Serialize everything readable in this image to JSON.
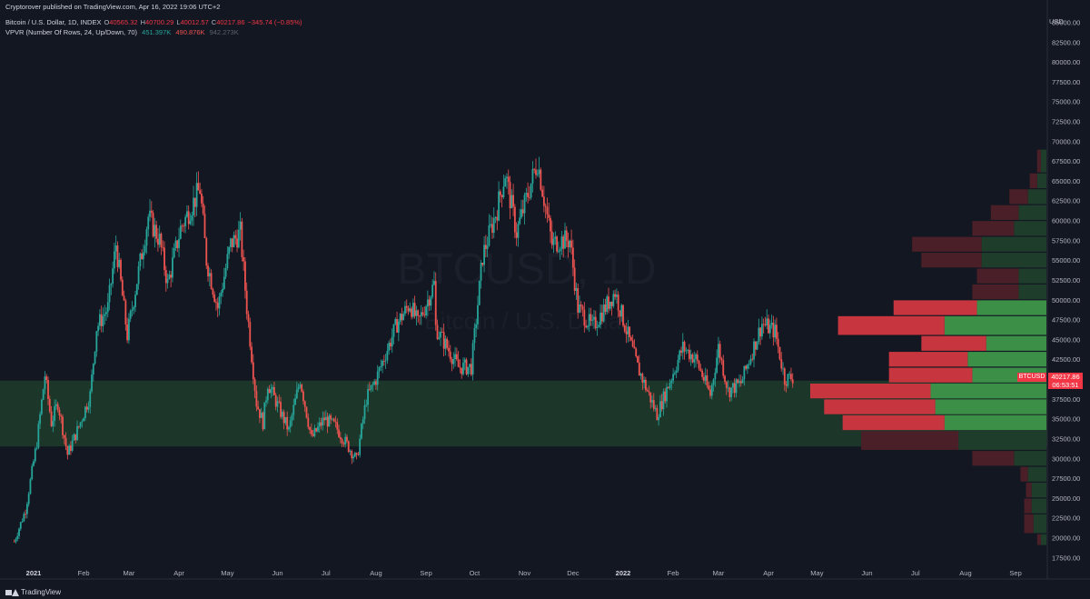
{
  "publisher": "Cryptorover published on TradingView.com, Apr 16, 2022 19:06 UTC+2",
  "symbol_line": "Bitcoin / U.S. Dollar, 1D, INDEX",
  "ohlc": {
    "o_label": "O",
    "o": "40565.32",
    "h_label": "H",
    "h": "40700.29",
    "l_label": "L",
    "l": "40012.57",
    "c_label": "C",
    "c": "40217.86",
    "change": "−345.74 (−0.85%)"
  },
  "vpvr": {
    "label": "VPVR (Number Of Rows, 24, Up/Down, 70)",
    "up": "451.397K",
    "down": "490.876K",
    "total": "942.273K"
  },
  "watermark": {
    "symbol": "BTCUSD, 1D",
    "name": "Bitcoin / U.S. Dollar"
  },
  "axis_unit": "USD",
  "current_price": {
    "symbol": "BTCUSD",
    "price": "40217.86",
    "countdown": "06:53:51"
  },
  "brand": "TradingView",
  "colors": {
    "background": "#131722",
    "up": "#26a69a",
    "down": "#ef5350",
    "zone": "#1f3a2b",
    "vp_up_va": "#3b8f47",
    "vp_down_va": "#c7353f",
    "vp_up": "#1e3d2a",
    "vp_down": "#4a1f27",
    "price_tag": "#f23645"
  },
  "chart_data": {
    "type": "candlestick_with_volume_profile",
    "x_ticks": [
      "2021",
      "Feb",
      "Mar",
      "Apr",
      "May",
      "Jun",
      "Jul",
      "Aug",
      "Sep",
      "Oct",
      "Nov",
      "Dec",
      "2022",
      "Feb",
      "Mar",
      "Apr",
      "May",
      "Jun",
      "Jul",
      "Aug",
      "Sep"
    ],
    "y_ticks": [
      85000,
      82500,
      80000,
      77500,
      75000,
      72500,
      70000,
      67500,
      65000,
      62500,
      60000,
      57500,
      55000,
      52500,
      50000,
      47500,
      45000,
      42500,
      40000,
      37500,
      35000,
      32500,
      30000,
      27500,
      25000,
      22500,
      20000,
      17500
    ],
    "y_tick_labels": [
      "85000.00",
      "82500.00",
      "80000.00",
      "77500.00",
      "75000.00",
      "72500.00",
      "70000.00",
      "67500.00",
      "65000.00",
      "62500.00",
      "60000.00",
      "57500.00",
      "55000.00",
      "52500.00",
      "50000.00",
      "47500.00",
      "45000.00",
      "42500.00",
      "40000.00",
      "37500.00",
      "35000.00",
      "32500.00",
      "30000.00",
      "27500.00",
      "25000.00",
      "22500.00",
      "20000.00",
      "17500.00"
    ],
    "ylim": [
      15700,
      86200
    ],
    "price_path": [
      {
        "x": "2020-12-20",
        "y": 19500
      },
      {
        "x": "2020-12-27",
        "y": 23500
      },
      {
        "x": "2021-01-03",
        "y": 32000
      },
      {
        "x": "2021-01-08",
        "y": 40500
      },
      {
        "x": "2021-01-12",
        "y": 34500
      },
      {
        "x": "2021-01-16",
        "y": 37000
      },
      {
        "x": "2021-01-22",
        "y": 30500
      },
      {
        "x": "2021-01-29",
        "y": 34000
      },
      {
        "x": "2021-02-05",
        "y": 38000
      },
      {
        "x": "2021-02-09",
        "y": 46500
      },
      {
        "x": "2021-02-16",
        "y": 49000
      },
      {
        "x": "2021-02-21",
        "y": 57000
      },
      {
        "x": "2021-02-28",
        "y": 45500
      },
      {
        "x": "2021-03-13",
        "y": 60500
      },
      {
        "x": "2021-03-20",
        "y": 57500
      },
      {
        "x": "2021-03-25",
        "y": 52000
      },
      {
        "x": "2021-04-02",
        "y": 59000
      },
      {
        "x": "2021-04-14",
        "y": 64000
      },
      {
        "x": "2021-04-18",
        "y": 55000
      },
      {
        "x": "2021-04-25",
        "y": 49000
      },
      {
        "x": "2021-05-03",
        "y": 57000
      },
      {
        "x": "2021-05-09",
        "y": 58500
      },
      {
        "x": "2021-05-13",
        "y": 49000
      },
      {
        "x": "2021-05-19",
        "y": 37000
      },
      {
        "x": "2021-05-23",
        "y": 34500
      },
      {
        "x": "2021-05-26",
        "y": 39500
      },
      {
        "x": "2021-06-08",
        "y": 33500
      },
      {
        "x": "2021-06-15",
        "y": 40000
      },
      {
        "x": "2021-06-22",
        "y": 32500
      },
      {
        "x": "2021-06-30",
        "y": 35000
      },
      {
        "x": "2021-07-07",
        "y": 34000
      },
      {
        "x": "2021-07-20",
        "y": 29800
      },
      {
        "x": "2021-07-26",
        "y": 37500
      },
      {
        "x": "2021-08-01",
        "y": 40000
      },
      {
        "x": "2021-08-14",
        "y": 47000
      },
      {
        "x": "2021-08-22",
        "y": 49500
      },
      {
        "x": "2021-08-27",
        "y": 47000
      },
      {
        "x": "2021-09-06",
        "y": 52000
      },
      {
        "x": "2021-09-07",
        "y": 46500
      },
      {
        "x": "2021-09-21",
        "y": 41500
      },
      {
        "x": "2021-09-29",
        "y": 41500
      },
      {
        "x": "2021-10-06",
        "y": 55500
      },
      {
        "x": "2021-10-15",
        "y": 61500
      },
      {
        "x": "2021-10-20",
        "y": 66000
      },
      {
        "x": "2021-10-27",
        "y": 58500
      },
      {
        "x": "2021-11-09",
        "y": 67500
      },
      {
        "x": "2021-11-18",
        "y": 57000
      },
      {
        "x": "2021-11-23",
        "y": 57500
      },
      {
        "x": "2021-11-29",
        "y": 57500
      },
      {
        "x": "2021-12-04",
        "y": 49000
      },
      {
        "x": "2021-12-13",
        "y": 46500
      },
      {
        "x": "2021-12-27",
        "y": 51000
      },
      {
        "x": "2022-01-01",
        "y": 47500
      },
      {
        "x": "2022-01-10",
        "y": 41500
      },
      {
        "x": "2022-01-22",
        "y": 35500
      },
      {
        "x": "2022-02-07",
        "y": 44000
      },
      {
        "x": "2022-02-15",
        "y": 42500
      },
      {
        "x": "2022-02-24",
        "y": 38000
      },
      {
        "x": "2022-03-01",
        "y": 44000
      },
      {
        "x": "2022-03-07",
        "y": 38500
      },
      {
        "x": "2022-03-15",
        "y": 39500
      },
      {
        "x": "2022-03-28",
        "y": 47000
      },
      {
        "x": "2022-04-05",
        "y": 46000
      },
      {
        "x": "2022-04-11",
        "y": 40000
      },
      {
        "x": "2022-04-16",
        "y": 40217
      }
    ],
    "volume_profile": [
      {
        "price_low": 19000,
        "price_high": 20500,
        "up": 6,
        "down": 4
      },
      {
        "price_low": 20500,
        "price_high": 23000,
        "up": 14,
        "down": 10
      },
      {
        "price_low": 23000,
        "price_high": 25000,
        "up": 16,
        "down": 8
      },
      {
        "price_low": 25000,
        "price_high": 27000,
        "up": 16,
        "down": 6
      },
      {
        "price_low": 27000,
        "price_high": 29000,
        "up": 20,
        "down": 8
      },
      {
        "price_low": 29000,
        "price_high": 31000,
        "up": 35,
        "down": 45
      },
      {
        "price_low": 31000,
        "price_high": 33500,
        "up": 95,
        "down": 105
      },
      {
        "price_low": 33500,
        "price_high": 35500,
        "up": 110,
        "down": 110
      },
      {
        "price_low": 35500,
        "price_high": 37500,
        "up": 120,
        "down": 120
      },
      {
        "price_low": 37500,
        "price_high": 39500,
        "up": 125,
        "down": 130
      },
      {
        "price_low": 39500,
        "price_high": 41500,
        "up": 80,
        "down": 90
      },
      {
        "price_low": 41500,
        "price_high": 43500,
        "up": 85,
        "down": 85
      },
      {
        "price_low": 43500,
        "price_high": 45500,
        "up": 65,
        "down": 70
      },
      {
        "price_low": 45500,
        "price_high": 48000,
        "up": 110,
        "down": 115
      },
      {
        "price_low": 48000,
        "price_high": 50000,
        "up": 75,
        "down": 90
      },
      {
        "price_low": 50000,
        "price_high": 52000,
        "up": 30,
        "down": 50
      },
      {
        "price_low": 52000,
        "price_high": 54000,
        "up": 30,
        "down": 45
      },
      {
        "price_low": 54000,
        "price_high": 56000,
        "up": 70,
        "down": 65
      },
      {
        "price_low": 56000,
        "price_high": 58000,
        "up": 70,
        "down": 75
      },
      {
        "price_low": 58000,
        "price_high": 60000,
        "up": 35,
        "down": 45
      },
      {
        "price_low": 60000,
        "price_high": 62000,
        "up": 30,
        "down": 30
      },
      {
        "price_low": 62000,
        "price_high": 64000,
        "up": 20,
        "down": 20
      },
      {
        "price_low": 64000,
        "price_high": 66000,
        "up": 10,
        "down": 8
      },
      {
        "price_low": 66000,
        "price_high": 69000,
        "up": 6,
        "down": 4
      }
    ],
    "value_area": [
      32500,
      50000
    ],
    "highlight_zone": [
      31500,
      39800
    ]
  }
}
